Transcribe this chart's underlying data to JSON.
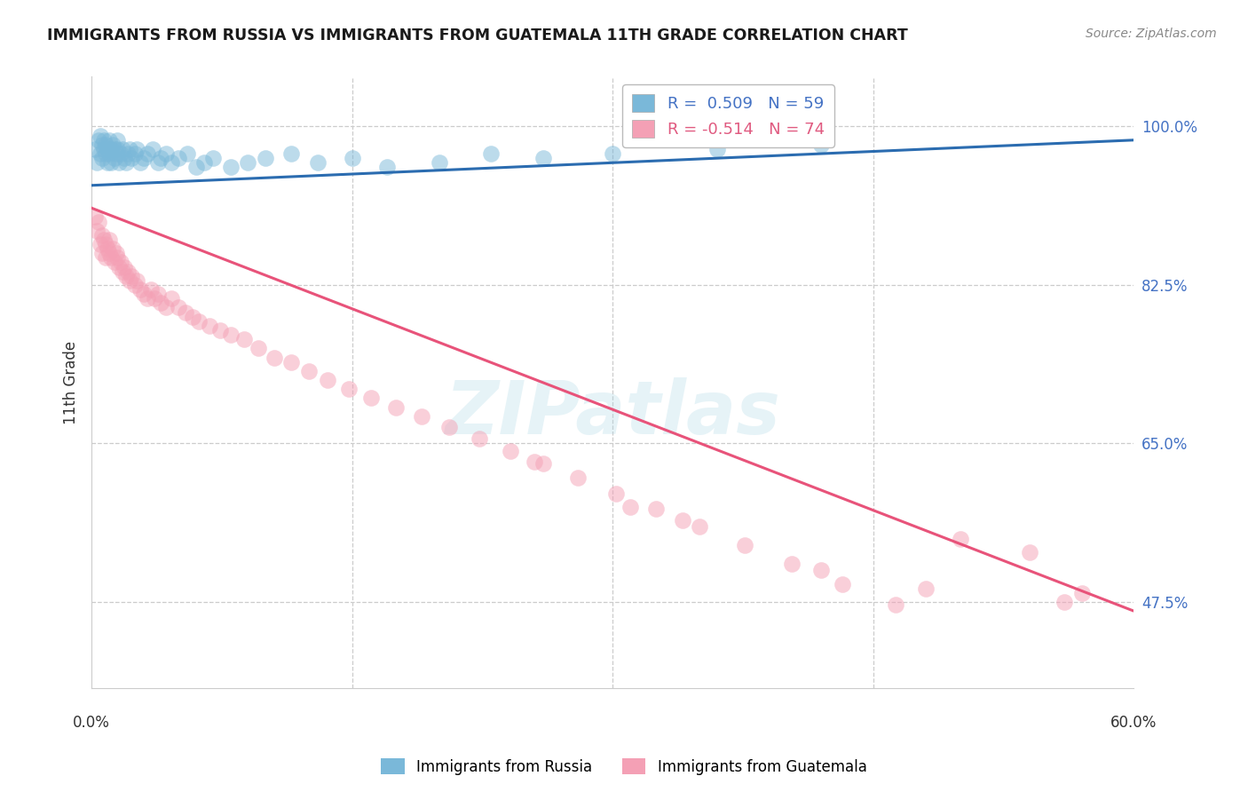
{
  "title": "IMMIGRANTS FROM RUSSIA VS IMMIGRANTS FROM GUATEMALA 11TH GRADE CORRELATION CHART",
  "source": "Source: ZipAtlas.com",
  "ylabel": "11th Grade",
  "ytick_labels": [
    "100.0%",
    "82.5%",
    "65.0%",
    "47.5%"
  ],
  "ytick_vals": [
    1.0,
    0.825,
    0.65,
    0.475
  ],
  "xlim": [
    0.0,
    0.6
  ],
  "ylim": [
    0.38,
    1.055
  ],
  "blue_color": "#7ab8d9",
  "pink_color": "#f4a0b5",
  "blue_line_color": "#2b6cb0",
  "pink_line_color": "#e8537a",
  "russia_line": [
    0.0,
    0.6,
    0.935,
    0.985
  ],
  "guatemala_line": [
    0.0,
    0.6,
    0.91,
    0.465
  ],
  "russia_x": [
    0.002,
    0.003,
    0.004,
    0.005,
    0.005,
    0.006,
    0.006,
    0.007,
    0.007,
    0.008,
    0.008,
    0.009,
    0.009,
    0.01,
    0.01,
    0.011,
    0.011,
    0.012,
    0.013,
    0.013,
    0.014,
    0.015,
    0.015,
    0.016,
    0.017,
    0.018,
    0.019,
    0.02,
    0.021,
    0.022,
    0.023,
    0.025,
    0.026,
    0.028,
    0.03,
    0.032,
    0.035,
    0.038,
    0.04,
    0.043,
    0.046,
    0.05,
    0.055,
    0.06,
    0.065,
    0.07,
    0.08,
    0.09,
    0.1,
    0.115,
    0.13,
    0.15,
    0.17,
    0.2,
    0.23,
    0.26,
    0.3,
    0.36,
    0.42
  ],
  "russia_y": [
    0.975,
    0.96,
    0.985,
    0.97,
    0.99,
    0.965,
    0.98,
    0.975,
    0.985,
    0.97,
    0.98,
    0.96,
    0.975,
    0.985,
    0.97,
    0.975,
    0.96,
    0.98,
    0.965,
    0.975,
    0.97,
    0.975,
    0.985,
    0.96,
    0.97,
    0.975,
    0.965,
    0.96,
    0.97,
    0.975,
    0.965,
    0.97,
    0.975,
    0.96,
    0.965,
    0.97,
    0.975,
    0.96,
    0.965,
    0.97,
    0.96,
    0.965,
    0.97,
    0.955,
    0.96,
    0.965,
    0.955,
    0.96,
    0.965,
    0.97,
    0.96,
    0.965,
    0.955,
    0.96,
    0.97,
    0.965,
    0.97,
    0.975,
    0.98
  ],
  "guatemala_x": [
    0.002,
    0.003,
    0.004,
    0.005,
    0.006,
    0.006,
    0.007,
    0.008,
    0.008,
    0.009,
    0.01,
    0.01,
    0.011,
    0.012,
    0.013,
    0.014,
    0.015,
    0.016,
    0.017,
    0.018,
    0.019,
    0.02,
    0.021,
    0.022,
    0.023,
    0.025,
    0.026,
    0.028,
    0.03,
    0.032,
    0.034,
    0.036,
    0.038,
    0.04,
    0.043,
    0.046,
    0.05,
    0.054,
    0.058,
    0.062,
    0.068,
    0.074,
    0.08,
    0.088,
    0.096,
    0.105,
    0.115,
    0.125,
    0.136,
    0.148,
    0.161,
    0.175,
    0.19,
    0.206,
    0.223,
    0.241,
    0.26,
    0.28,
    0.302,
    0.325,
    0.35,
    0.376,
    0.403,
    0.432,
    0.463,
    0.34,
    0.42,
    0.5,
    0.54,
    0.57,
    0.255,
    0.31,
    0.48,
    0.56
  ],
  "guatemala_y": [
    0.9,
    0.885,
    0.895,
    0.87,
    0.88,
    0.86,
    0.875,
    0.855,
    0.87,
    0.865,
    0.86,
    0.875,
    0.855,
    0.865,
    0.85,
    0.86,
    0.855,
    0.845,
    0.85,
    0.84,
    0.845,
    0.835,
    0.84,
    0.83,
    0.835,
    0.825,
    0.83,
    0.82,
    0.815,
    0.81,
    0.82,
    0.81,
    0.815,
    0.805,
    0.8,
    0.81,
    0.8,
    0.795,
    0.79,
    0.785,
    0.78,
    0.775,
    0.77,
    0.765,
    0.755,
    0.745,
    0.74,
    0.73,
    0.72,
    0.71,
    0.7,
    0.69,
    0.68,
    0.668,
    0.655,
    0.642,
    0.628,
    0.612,
    0.595,
    0.578,
    0.558,
    0.538,
    0.517,
    0.495,
    0.472,
    0.565,
    0.51,
    0.545,
    0.53,
    0.485,
    0.63,
    0.58,
    0.49,
    0.475
  ]
}
